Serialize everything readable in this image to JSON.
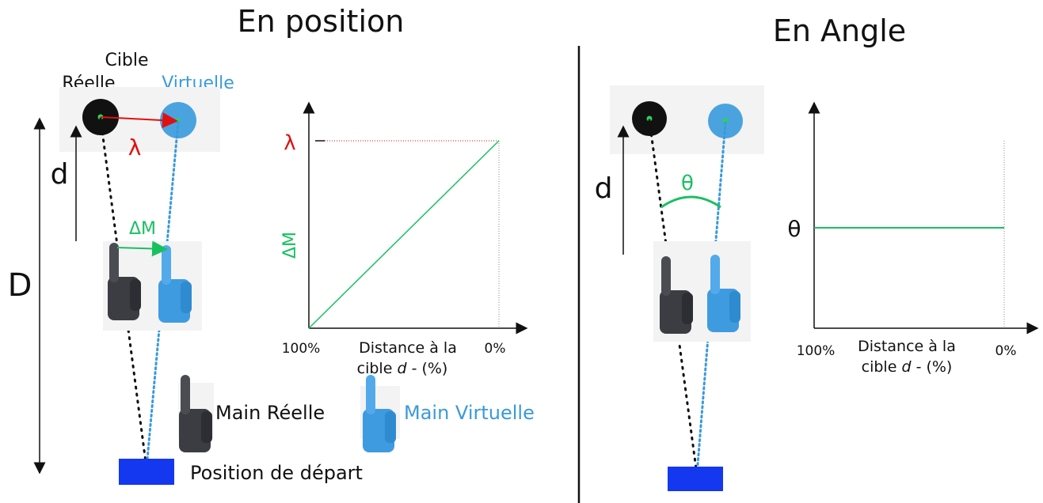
{
  "left": {
    "title": "En position",
    "target_label": "Cible",
    "real_label": "Réelle",
    "virtual_label": "Virtuelle",
    "lambda": "λ",
    "d": "d",
    "delta_m": "ΔM",
    "D": "D",
    "graph": {
      "y_label": "ΔM",
      "y_tick": "λ",
      "x_start": "100%",
      "x_end": "0%",
      "x_title_line1": "Distance à  la",
      "x_title_line2": "cible",
      "x_var": "d",
      "x_unit": "- (%)"
    },
    "legend": {
      "real": "Main Réelle",
      "virtual": "Main Virtuelle",
      "start": "Position de départ"
    }
  },
  "right": {
    "title": "En Angle",
    "d": "d",
    "theta": "θ",
    "graph": {
      "y_tick": "θ",
      "x_start": "100%",
      "x_end": "0%",
      "x_title_line1": "Distance à la",
      "x_title_line2": "cible",
      "x_var": "d",
      "x_unit": "- (%)"
    }
  }
}
